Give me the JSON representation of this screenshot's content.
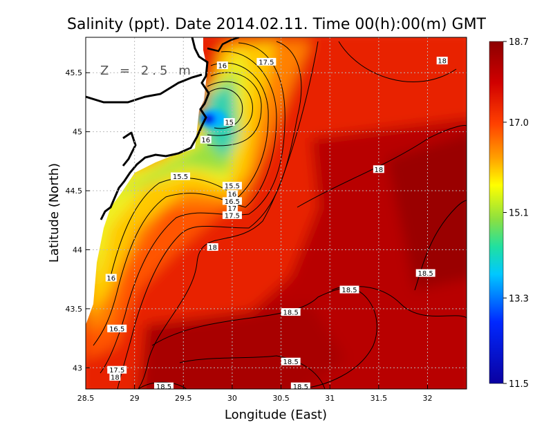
{
  "chart_data": {
    "type": "heatmap",
    "title": "Salinity (ppt). Date 2014.02.11. Time 00(h):00(m) GMT",
    "xlabel": "Longitude (East)",
    "ylabel": "Latitude (North)",
    "annotation": "Z = 2.5 m",
    "xlim": [
      28.5,
      32.4
    ],
    "ylim": [
      42.82,
      45.8
    ],
    "x_ticks": [
      28.5,
      29,
      29.5,
      30,
      30.5,
      31,
      31.5,
      32
    ],
    "y_ticks": [
      43,
      43.5,
      44,
      44.5,
      45,
      45.5
    ],
    "x_tick_labels": [
      "28.5",
      "29",
      "29.5",
      "30",
      "30.5",
      "31",
      "31.5",
      "32"
    ],
    "y_tick_labels": [
      "43",
      "43.5",
      "44",
      "44.5",
      "45",
      "45.5"
    ],
    "grid": true,
    "colorbar": {
      "min": 11.5,
      "max": 18.7,
      "ticks": [
        18.7,
        17.0,
        15.1,
        13.3,
        11.5
      ],
      "tick_labels": [
        "18.7",
        "17.0",
        "15.1",
        "13.3",
        "11.5"
      ],
      "colors": [
        "#0a00a0",
        "#0028ff",
        "#00c8ff",
        "#20e0a0",
        "#8ce040",
        "#ffff00",
        "#ffa000",
        "#ff4000",
        "#d00000",
        "#8c0000"
      ]
    },
    "contour_labels": [
      {
        "text": "16",
        "lon": 29.9,
        "lat": 45.56
      },
      {
        "text": "17.5",
        "lon": 30.35,
        "lat": 45.59
      },
      {
        "text": "15",
        "lon": 29.97,
        "lat": 45.08
      },
      {
        "text": "16",
        "lon": 29.73,
        "lat": 44.93
      },
      {
        "text": "15.5",
        "lon": 29.47,
        "lat": 44.62
      },
      {
        "text": "15.5",
        "lon": 30.0,
        "lat": 44.54
      },
      {
        "text": "16",
        "lon": 30.0,
        "lat": 44.47
      },
      {
        "text": "16.5",
        "lon": 30.0,
        "lat": 44.41
      },
      {
        "text": "17",
        "lon": 30.0,
        "lat": 44.35
      },
      {
        "text": "17.5",
        "lon": 30.0,
        "lat": 44.29
      },
      {
        "text": "18",
        "lon": 29.8,
        "lat": 44.02
      },
      {
        "text": "18",
        "lon": 31.5,
        "lat": 44.68
      },
      {
        "text": "18",
        "lon": 32.15,
        "lat": 45.6
      },
      {
        "text": "16",
        "lon": 28.76,
        "lat": 43.76
      },
      {
        "text": "16.5",
        "lon": 28.82,
        "lat": 43.33
      },
      {
        "text": "17.5",
        "lon": 28.82,
        "lat": 42.98
      },
      {
        "text": "18",
        "lon": 28.8,
        "lat": 42.92
      },
      {
        "text": "18.5",
        "lon": 30.6,
        "lat": 43.47
      },
      {
        "text": "18.5",
        "lon": 31.2,
        "lat": 43.66
      },
      {
        "text": "18.5",
        "lon": 31.98,
        "lat": 43.8
      },
      {
        "text": "18.5",
        "lon": 30.6,
        "lat": 43.05
      },
      {
        "text": "18.5",
        "lon": 29.3,
        "lat": 42.84
      },
      {
        "text": "18.5",
        "lon": 30.7,
        "lat": 42.84
      }
    ]
  }
}
